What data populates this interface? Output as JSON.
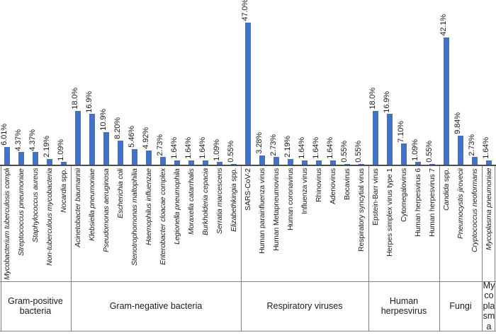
{
  "chart_data": {
    "type": "bar",
    "title": "",
    "xlabel": "",
    "ylabel": "",
    "unit": "%",
    "ylim": [
      0,
      50
    ],
    "grid": false,
    "legend": "none",
    "value_labels": "rotated-90-above-bars",
    "category_labels": "rotated-90-below-axis",
    "bar_color": "#4472C4",
    "axis_color": "#4d4d4d",
    "border_color": "#808080",
    "groups": [
      {
        "name": "Gram-positive bacteria",
        "items": [
          {
            "italic": "Mycobacterium tuberculosis complex",
            "roman": "",
            "value": 6.01,
            "display": "6.01%"
          },
          {
            "italic": "Streptococcus pneumoniae",
            "roman": "",
            "value": 4.37,
            "display": "4.37%"
          },
          {
            "italic": "Staphylococcus aureus",
            "roman": "",
            "value": 4.37,
            "display": "4.37%"
          },
          {
            "italic": "Non-tuberculous mycobacteria",
            "roman": "",
            "value": 2.19,
            "display": "2.19%"
          },
          {
            "italic": "Nocardia",
            "roman": " spp.",
            "value": 1.09,
            "display": "1.09%"
          }
        ]
      },
      {
        "name": "Gram-negative bacteria",
        "items": [
          {
            "italic": "Acinetobacter baumannii",
            "roman": "",
            "value": 18.0,
            "display": "18.0%"
          },
          {
            "italic": "Klebsiella pneumoniae",
            "roman": "",
            "value": 16.9,
            "display": "16.9%"
          },
          {
            "italic": "Pseudomonas aeruginosa",
            "roman": "",
            "value": 10.9,
            "display": "10.9%"
          },
          {
            "italic": "Escherichia coli",
            "roman": "",
            "value": 8.2,
            "display": "8.20%"
          },
          {
            "italic": "Stenotrophomonas maltophilia",
            "roman": "",
            "value": 5.46,
            "display": "5.46%"
          },
          {
            "italic": "Haemophilus influenzae",
            "roman": "",
            "value": 4.92,
            "display": "4.92%"
          },
          {
            "italic": "Enterobacter cloacae complex",
            "roman": "",
            "value": 2.73,
            "display": "2.73%"
          },
          {
            "italic": "Legionella pneumophila",
            "roman": "",
            "value": 1.64,
            "display": "1.64%"
          },
          {
            "italic": "Moraxella catarrhalis",
            "roman": "",
            "value": 1.64,
            "display": "1.64%"
          },
          {
            "italic": "Burkholderia cepacia",
            "roman": "",
            "value": 1.64,
            "display": "1.64%"
          },
          {
            "italic": "Serratia marcescens",
            "roman": "",
            "value": 1.09,
            "display": "1.09%"
          },
          {
            "italic": "Elizabethkingia",
            "roman": " spp.",
            "value": 0.55,
            "display": "0.55%"
          }
        ]
      },
      {
        "name": "Respiratory viruses",
        "items": [
          {
            "italic": "",
            "roman": "SARS-CoV-2",
            "value": 47.0,
            "display": "47.0%"
          },
          {
            "italic": "",
            "roman": "Human parainfluenza virus",
            "value": 3.28,
            "display": "3.28%"
          },
          {
            "italic": "",
            "roman": "Human Metapneumovirus",
            "value": 2.73,
            "display": "2.73%"
          },
          {
            "italic": "",
            "roman": "Human coronavirus",
            "value": 2.19,
            "display": "2.19%"
          },
          {
            "italic": "",
            "roman": "Influenza virus",
            "value": 1.64,
            "display": "1.64%"
          },
          {
            "italic": "",
            "roman": "Rhinovirus",
            "value": 1.64,
            "display": "1.64%"
          },
          {
            "italic": "",
            "roman": "Adenovirus",
            "value": 1.64,
            "display": "1.64%"
          },
          {
            "italic": "",
            "roman": "Bocavirus",
            "value": 0.55,
            "display": "0.55%"
          },
          {
            "italic": "",
            "roman": "Respiratory syncytial virus",
            "value": 0.55,
            "display": "0.55%"
          }
        ]
      },
      {
        "name": "Human herpesvirus",
        "items": [
          {
            "italic": "",
            "roman": "Epstein-Barr virus",
            "value": 18.0,
            "display": "18.0%"
          },
          {
            "italic": "",
            "roman": "Herpes simplex virus type 1",
            "value": 16.9,
            "display": "16.9%"
          },
          {
            "italic": "",
            "roman": "Cytomegalovirus",
            "value": 7.1,
            "display": "7.10%"
          },
          {
            "italic": "",
            "roman": "Human herpesvirus 6",
            "value": 1.09,
            "display": "1.09%"
          },
          {
            "italic": "",
            "roman": "Human herpesvirus 7",
            "value": 0.55,
            "display": "0.55%"
          }
        ]
      },
      {
        "name": "Fungi",
        "items": [
          {
            "italic": "Candida",
            "roman": " spp.",
            "value": 42.1,
            "display": "42.1%"
          },
          {
            "italic": "Pneumocystis jirovecii",
            "roman": "",
            "value": 9.84,
            "display": "9.84%"
          },
          {
            "italic": "Cryptococcus neoformans",
            "roman": "",
            "value": 2.73,
            "display": "2.73%"
          }
        ]
      },
      {
        "name": "Mycoplasma",
        "items": [
          {
            "italic": "Mycoplasma pneumoniae",
            "roman": "",
            "value": 1.64,
            "display": "1.64%"
          }
        ]
      }
    ]
  }
}
